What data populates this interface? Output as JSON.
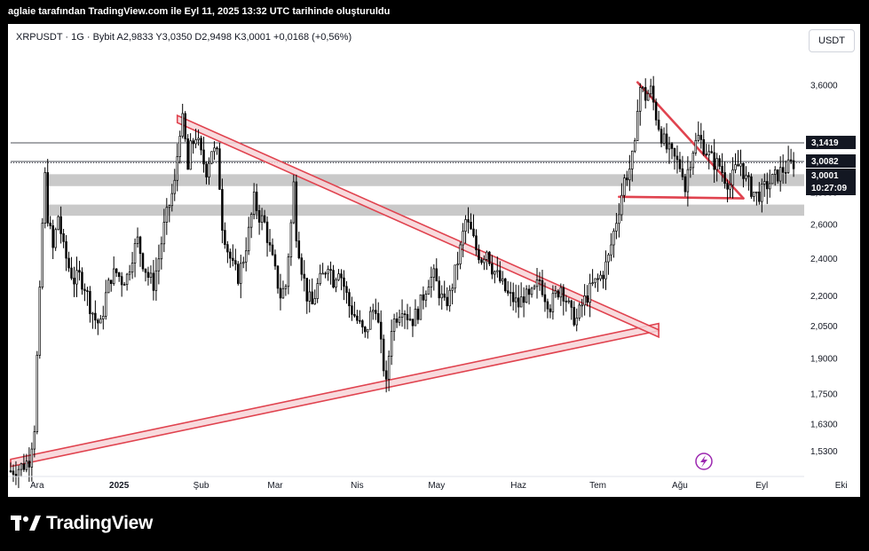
{
  "caption": "aglaie tarafından TradingView.com ile Eyl 11, 2025 13:32 UTC tarihinde oluşturuldu",
  "header": {
    "symbol_line": "XRPUSDT · 1G · Bybit  A2,9833  Y3,0350  D2,9498  K3,0001  +0,0168 (+0,56%)",
    "currency": "USDT"
  },
  "brand": {
    "name": "TradingView"
  },
  "colors": {
    "candle": "#000000",
    "pattern": "#e0434f",
    "pattern_fill": "#f7d4d7",
    "zone": "#c9c9c9",
    "background": "#ffffff"
  },
  "chart_data": {
    "type": "candlestick",
    "symbol": "XRPUSDT",
    "interval": "1G",
    "exchange": "Bybit",
    "ohlc_last": {
      "open": 2.9833,
      "high": 3.035,
      "low": 2.9498,
      "close": 3.0001,
      "change": 0.0168,
      "change_pct": 0.56
    },
    "y_scale": "log",
    "ylim": [
      1.45,
      3.85
    ],
    "xlim": [
      0,
      300
    ],
    "y_ticks": [
      "3,6000",
      "2,8000",
      "2,6000",
      "2,4000",
      "2,2000",
      "2,0500",
      "1,9000",
      "1,7500",
      "1,6300",
      "1,5300"
    ],
    "y_tick_values": [
      3.6,
      2.8,
      2.6,
      2.4,
      2.2,
      2.05,
      1.9,
      1.75,
      1.63,
      1.53
    ],
    "x_ticks": [
      {
        "label": "Ara",
        "x": 10
      },
      {
        "label": "2025",
        "x": 41
      },
      {
        "label": "Şub",
        "x": 72
      },
      {
        "label": "Mar",
        "x": 100
      },
      {
        "label": "Nis",
        "x": 131
      },
      {
        "label": "May",
        "x": 161
      },
      {
        "label": "Haz",
        "x": 192
      },
      {
        "label": "Tem",
        "x": 222
      },
      {
        "label": "Ağu",
        "x": 253
      },
      {
        "label": "Eyl",
        "x": 284
      },
      {
        "label": "Eki",
        "x": 314
      }
    ],
    "price_labels": [
      {
        "label": "3,1419",
        "value": 3.1419,
        "style": "dark"
      },
      {
        "label": "3,0082",
        "value": 3.0082,
        "style": "dark"
      },
      {
        "label": "3,0001",
        "value": 3.0001,
        "style": "dark",
        "sub": "10:27:09"
      }
    ],
    "path_points": [
      [
        0,
        1.46
      ],
      [
        3,
        1.47
      ],
      [
        5,
        1.48
      ],
      [
        7,
        1.5
      ],
      [
        9,
        1.62
      ],
      [
        10,
        1.9
      ],
      [
        11,
        2.2
      ],
      [
        12,
        2.6
      ],
      [
        13,
        2.9
      ],
      [
        14,
        2.65
      ],
      [
        15,
        2.55
      ],
      [
        16,
        2.45
      ],
      [
        17,
        2.55
      ],
      [
        18,
        2.65
      ],
      [
        20,
        2.45
      ],
      [
        22,
        2.35
      ],
      [
        24,
        2.28
      ],
      [
        26,
        2.3
      ],
      [
        28,
        2.25
      ],
      [
        30,
        2.15
      ],
      [
        32,
        2.08
      ],
      [
        34,
        2.05
      ],
      [
        36,
        2.2
      ],
      [
        38,
        2.3
      ],
      [
        40,
        2.32
      ],
      [
        42,
        2.28
      ],
      [
        44,
        2.3
      ],
      [
        46,
        2.42
      ],
      [
        48,
        2.5
      ],
      [
        50,
        2.38
      ],
      [
        52,
        2.3
      ],
      [
        54,
        2.26
      ],
      [
        56,
        2.4
      ],
      [
        58,
        2.58
      ],
      [
        60,
        2.72
      ],
      [
        62,
        2.85
      ],
      [
        63,
        3.05
      ],
      [
        64,
        3.25
      ],
      [
        65,
        3.3
      ],
      [
        66,
        3.15
      ],
      [
        67,
        2.95
      ],
      [
        68,
        3.1
      ],
      [
        70,
        3.2
      ],
      [
        72,
        3.05
      ],
      [
        74,
        2.95
      ],
      [
        76,
        3.1
      ],
      [
        78,
        3.05
      ],
      [
        79,
        2.85
      ],
      [
        80,
        2.6
      ],
      [
        82,
        2.45
      ],
      [
        84,
        2.35
      ],
      [
        86,
        2.3
      ],
      [
        88,
        2.4
      ],
      [
        90,
        2.55
      ],
      [
        92,
        2.75
      ],
      [
        94,
        2.65
      ],
      [
        96,
        2.6
      ],
      [
        98,
        2.45
      ],
      [
        100,
        2.32
      ],
      [
        102,
        2.2
      ],
      [
        104,
        2.25
      ],
      [
        106,
        2.6
      ],
      [
        107,
        2.85
      ],
      [
        108,
        2.55
      ],
      [
        110,
        2.35
      ],
      [
        112,
        2.2
      ],
      [
        114,
        2.15
      ],
      [
        116,
        2.25
      ],
      [
        118,
        2.3
      ],
      [
        120,
        2.38
      ],
      [
        122,
        2.28
      ],
      [
        124,
        2.35
      ],
      [
        126,
        2.25
      ],
      [
        128,
        2.15
      ],
      [
        130,
        2.1
      ],
      [
        132,
        2.05
      ],
      [
        134,
        2.0
      ],
      [
        136,
        2.1
      ],
      [
        138,
        2.15
      ],
      [
        140,
        1.95
      ],
      [
        142,
        1.78
      ],
      [
        144,
        2.05
      ],
      [
        146,
        2.1
      ],
      [
        148,
        2.15
      ],
      [
        150,
        2.1
      ],
      [
        152,
        2.08
      ],
      [
        154,
        2.12
      ],
      [
        156,
        2.2
      ],
      [
        158,
        2.28
      ],
      [
        160,
        2.3
      ],
      [
        162,
        2.22
      ],
      [
        164,
        2.15
      ],
      [
        166,
        2.2
      ],
      [
        168,
        2.32
      ],
      [
        170,
        2.45
      ],
      [
        172,
        2.62
      ],
      [
        174,
        2.55
      ],
      [
        176,
        2.45
      ],
      [
        178,
        2.4
      ],
      [
        180,
        2.45
      ],
      [
        182,
        2.35
      ],
      [
        184,
        2.3
      ],
      [
        186,
        2.25
      ],
      [
        188,
        2.2
      ],
      [
        190,
        2.18
      ],
      [
        192,
        2.15
      ],
      [
        194,
        2.2
      ],
      [
        196,
        2.18
      ],
      [
        198,
        2.22
      ],
      [
        200,
        2.28
      ],
      [
        202,
        2.2
      ],
      [
        204,
        2.15
      ],
      [
        206,
        2.2
      ],
      [
        208,
        2.25
      ],
      [
        210,
        2.18
      ],
      [
        212,
        2.1
      ],
      [
        214,
        2.08
      ],
      [
        216,
        2.15
      ],
      [
        218,
        2.2
      ],
      [
        220,
        2.25
      ],
      [
        222,
        2.28
      ],
      [
        224,
        2.32
      ],
      [
        226,
        2.4
      ],
      [
        228,
        2.55
      ],
      [
        230,
        2.7
      ],
      [
        232,
        2.88
      ],
      [
        234,
        2.96
      ],
      [
        236,
        3.1
      ],
      [
        237,
        3.45
      ],
      [
        238,
        3.58
      ],
      [
        240,
        3.5
      ],
      [
        242,
        3.55
      ],
      [
        244,
        3.35
      ],
      [
        246,
        3.2
      ],
      [
        248,
        3.1
      ],
      [
        250,
        3.05
      ],
      [
        252,
        3.0
      ],
      [
        254,
        2.95
      ],
      [
        255,
        2.82
      ],
      [
        256,
        2.95
      ],
      [
        258,
        3.1
      ],
      [
        260,
        3.18
      ],
      [
        262,
        3.12
      ],
      [
        264,
        3.05
      ],
      [
        266,
        3.0
      ],
      [
        268,
        2.98
      ],
      [
        270,
        2.9
      ],
      [
        272,
        2.85
      ],
      [
        274,
        2.95
      ],
      [
        276,
        3.0
      ],
      [
        278,
        2.88
      ],
      [
        280,
        2.82
      ],
      [
        282,
        2.78
      ],
      [
        284,
        2.8
      ],
      [
        286,
        2.85
      ],
      [
        288,
        2.88
      ],
      [
        290,
        2.92
      ],
      [
        292,
        2.95
      ],
      [
        294,
        2.97
      ],
      [
        296,
        3.0
      ]
    ],
    "zones": [
      {
        "y_low": 2.84,
        "y_high": 2.92,
        "x_start": 13,
        "x_end": 300
      },
      {
        "y_low": 2.65,
        "y_high": 2.72,
        "x_start": 14,
        "x_end": 300
      }
    ],
    "patterns": [
      {
        "type": "band",
        "p1": [
          0,
          1.5
        ],
        "p2": [
          245,
          2.06
        ],
        "width": 0.017
      },
      {
        "type": "band",
        "p1": [
          63,
          3.35
        ],
        "p2": [
          245,
          2.03
        ],
        "width": 0.017
      },
      {
        "type": "line",
        "p1": [
          237,
          3.62
        ],
        "p2": [
          277,
          2.76
        ]
      },
      {
        "type": "line",
        "p1": [
          230,
          2.77
        ],
        "p2": [
          277,
          2.76
        ]
      }
    ],
    "h_lines": [
      3.1419,
      3.0082
    ],
    "dotted_line": 3.0001
  }
}
